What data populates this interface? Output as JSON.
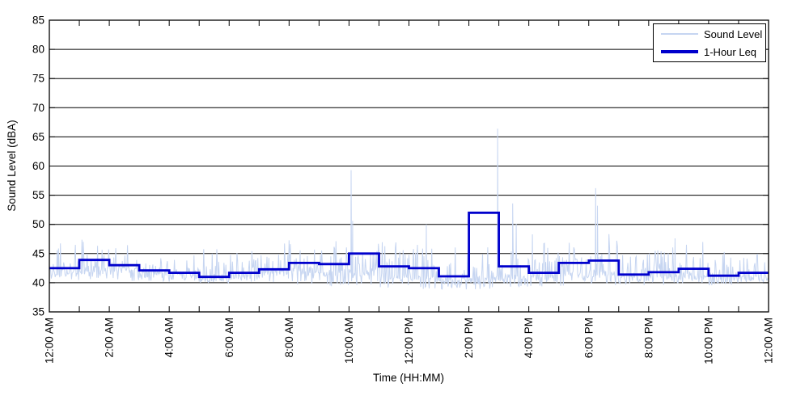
{
  "chart_data": {
    "type": "line",
    "title": "",
    "xlabel": "Time (HH:MM)",
    "ylabel": "Sound Level (dBA)",
    "xlim_hours": [
      0,
      24
    ],
    "ylim": [
      35,
      85
    ],
    "yticks": [
      35,
      40,
      45,
      50,
      55,
      60,
      65,
      70,
      75,
      80,
      85
    ],
    "xtick_hours": [
      0,
      2,
      4,
      6,
      8,
      10,
      12,
      14,
      16,
      18,
      20,
      22,
      24
    ],
    "xtick_labels": [
      "12:00 AM",
      "2:00 AM",
      "4:00 AM",
      "6:00 AM",
      "8:00 AM",
      "10:00 AM",
      "12:00 PM",
      "2:00 PM",
      "4:00 PM",
      "6:00 PM",
      "8:00 PM",
      "10:00 PM",
      "12:00 AM"
    ],
    "minor_tick_every_hours": 1,
    "grid": "horizontal-only",
    "legend_position": "top-right",
    "axis_color": "#000000",
    "series": [
      {
        "name": "Sound Level",
        "type": "noisy-line",
        "color": "#c6d5f1",
        "line_width": 1,
        "hourly_envelope": [
          {
            "base": 41.8,
            "lo": 40.2,
            "hi": 46.8
          },
          {
            "base": 42.2,
            "lo": 40.3,
            "hi": 47.6
          },
          {
            "base": 42.0,
            "lo": 40.0,
            "hi": 46.5
          },
          {
            "base": 41.5,
            "lo": 39.9,
            "hi": 45.8
          },
          {
            "base": 41.2,
            "lo": 39.9,
            "hi": 45.2
          },
          {
            "base": 40.8,
            "lo": 39.8,
            "hi": 45.8
          },
          {
            "base": 41.2,
            "lo": 39.8,
            "hi": 46.6
          },
          {
            "base": 41.8,
            "lo": 39.6,
            "hi": 47.6
          },
          {
            "base": 42.0,
            "lo": 39.2,
            "hi": 47.4
          },
          {
            "base": 41.6,
            "lo": 38.9,
            "hi": 47.2
          },
          {
            "base": 41.8,
            "lo": 38.9,
            "hi": 48.0
          },
          {
            "base": 41.0,
            "lo": 38.7,
            "hi": 47.6
          },
          {
            "base": 40.8,
            "lo": 38.6,
            "hi": 47.2
          },
          {
            "base": 40.3,
            "lo": 38.6,
            "hi": 46.4
          },
          {
            "base": 40.5,
            "lo": 38.5,
            "hi": 47.0
          },
          {
            "base": 40.8,
            "lo": 38.7,
            "hi": 47.2
          },
          {
            "base": 40.8,
            "lo": 38.9,
            "hi": 47.4
          },
          {
            "base": 41.3,
            "lo": 39.0,
            "hi": 47.8
          },
          {
            "base": 41.6,
            "lo": 39.2,
            "hi": 48.8
          },
          {
            "base": 41.0,
            "lo": 39.3,
            "hi": 45.6
          },
          {
            "base": 41.0,
            "lo": 39.3,
            "hi": 46.2
          },
          {
            "base": 41.3,
            "lo": 39.4,
            "hi": 47.2
          },
          {
            "base": 40.7,
            "lo": 39.3,
            "hi": 45.4
          },
          {
            "base": 41.0,
            "lo": 39.4,
            "hi": 46.4
          }
        ],
        "spike_events": [
          [
            10.07,
            59.3
          ],
          [
            10.12,
            50.6
          ],
          [
            12.58,
            50.0
          ],
          [
            14.96,
            66.4
          ],
          [
            15.46,
            53.6
          ],
          [
            15.58,
            50.1
          ],
          [
            16.12,
            48.3
          ],
          [
            18.23,
            56.2
          ],
          [
            18.29,
            53.2
          ],
          [
            20.88,
            47.6
          ]
        ]
      },
      {
        "name": "1-Hour Leq",
        "type": "step",
        "color": "#0000cc",
        "line_width": 2.8,
        "hours": [
          0,
          1,
          2,
          3,
          4,
          5,
          6,
          7,
          8,
          9,
          10,
          11,
          12,
          13,
          14,
          15,
          16,
          17,
          18,
          19,
          20,
          21,
          22,
          23
        ],
        "values": [
          42.5,
          43.9,
          43.0,
          42.1,
          41.7,
          41.0,
          41.7,
          42.3,
          43.4,
          43.2,
          45.0,
          42.8,
          42.5,
          41.1,
          52.0,
          42.8,
          41.7,
          43.4,
          43.8,
          41.4,
          41.8,
          42.4,
          41.2,
          41.7
        ]
      }
    ]
  }
}
